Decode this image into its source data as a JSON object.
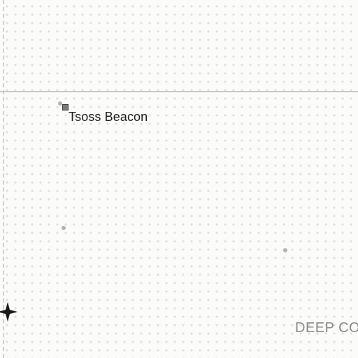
{
  "map": {
    "points_of_interest": [
      {
        "label": "Tsoss Beacon",
        "icon": "square-marker-icon"
      }
    ],
    "region_label": "DEEP CO",
    "markers": [
      {
        "icon": "four-point-star-icon"
      },
      {
        "icon": "small-dot-icon"
      },
      {
        "icon": "small-dot-icon"
      },
      {
        "icon": "small-dot-icon"
      }
    ],
    "colors": {
      "background": "#fbfbf9",
      "dot_pattern": "#e0e0d8",
      "gridline": "#c8c8c8",
      "poi_fill": "#7a7a7a",
      "label_text": "#1f1f1f",
      "region_text": "#8a8a8a"
    }
  }
}
